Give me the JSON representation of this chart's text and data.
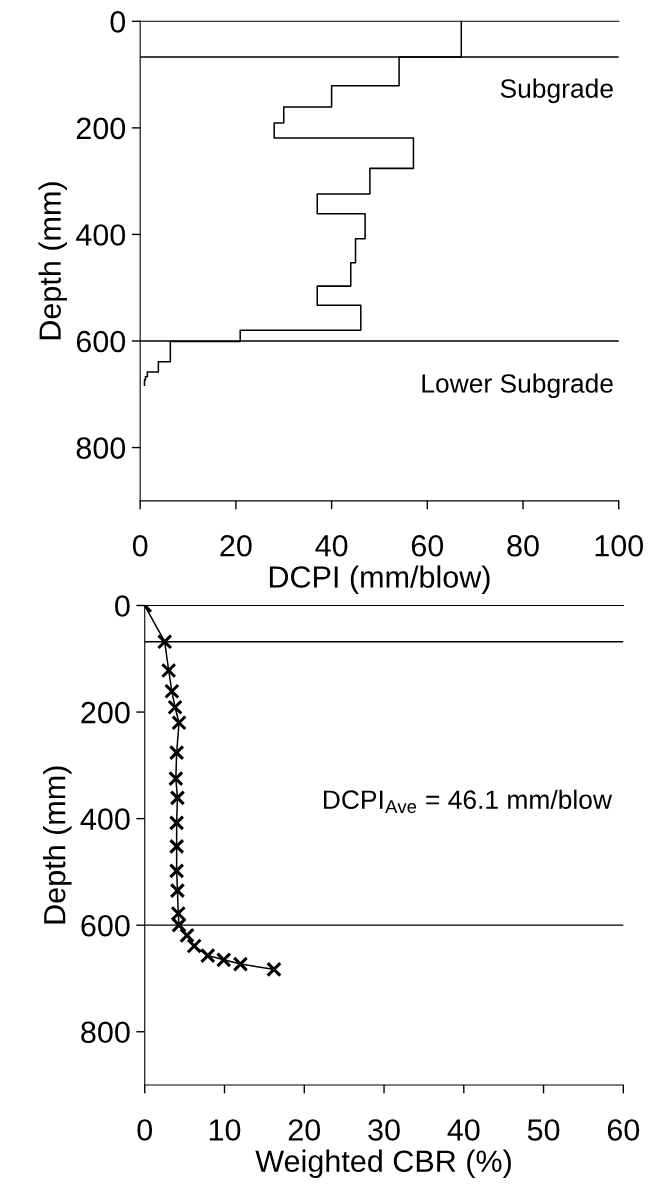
{
  "chart_data": [
    {
      "type": "step",
      "orientation": "horizontal",
      "xlabel": "DCPI (mm/blow)",
      "ylabel": "Depth (mm)",
      "series": [
        {
          "color": "#000000",
          "x": [
            0,
            67,
            121,
            161,
            191,
            219,
            276,
            324,
            361,
            408,
            453,
            497,
            533,
            580,
            601,
            639,
            658,
            667,
            673,
            683
          ],
          "values": [
            67.1,
            54.1,
            40.0,
            30.0,
            28.0,
            57.1,
            48.0,
            37.0,
            47.0,
            45.0,
            44.0,
            37.0,
            46.1,
            20.9,
            6.3,
            3.8,
            1.5,
            1.1,
            0.9,
            0.9
          ]
        }
      ],
      "xlim": [
        0,
        100
      ],
      "xticks": [
        0,
        20,
        40,
        60,
        80,
        100
      ],
      "ylim": [
        900,
        0
      ],
      "yticks": [
        0,
        200,
        400,
        600,
        800
      ],
      "ref_lines": [
        {
          "axis": "y",
          "value": 67,
          "color": "#000000"
        },
        {
          "axis": "y",
          "value": 600,
          "color": "#000000"
        }
      ],
      "annotations": [
        "Subgrade",
        "Lower Subgrade"
      ],
      "grid": false,
      "legend": false
    },
    {
      "type": "line",
      "xlabel": "Weighted CBR (%)",
      "ylabel": "Depth (mm)",
      "marker": "cross",
      "line_style": "solid",
      "orientation": "horizontal",
      "series": [
        {
          "color": "#000000",
          "x": [
            0,
            68,
            122,
            161,
            191,
            220,
            276,
            325,
            361,
            408,
            452,
            498,
            535,
            578,
            600,
            619,
            639,
            657,
            665,
            673,
            683
          ],
          "values": [
            0,
            2.5,
            3.0,
            3.4,
            3.8,
            4.3,
            4.0,
            3.9,
            4.1,
            4.0,
            4.0,
            4.0,
            4.1,
            4.2,
            4.3,
            5.3,
            6.2,
            7.9,
            9.9,
            12.0,
            16.2
          ]
        }
      ],
      "xlim": [
        0,
        60
      ],
      "xticks": [
        0,
        10,
        20,
        30,
        40,
        50,
        60
      ],
      "ylim": [
        900,
        0
      ],
      "yticks": [
        0,
        200,
        400,
        600,
        800
      ],
      "ref_lines": [
        {
          "axis": "y",
          "value": 68,
          "color": "#000000"
        },
        {
          "axis": "y",
          "value": 600,
          "color": "#000000"
        }
      ],
      "annotations": [
        "DCPI$_{Ave}$ = 46.1 mm/blow"
      ],
      "grid": false,
      "legend": false
    }
  ]
}
